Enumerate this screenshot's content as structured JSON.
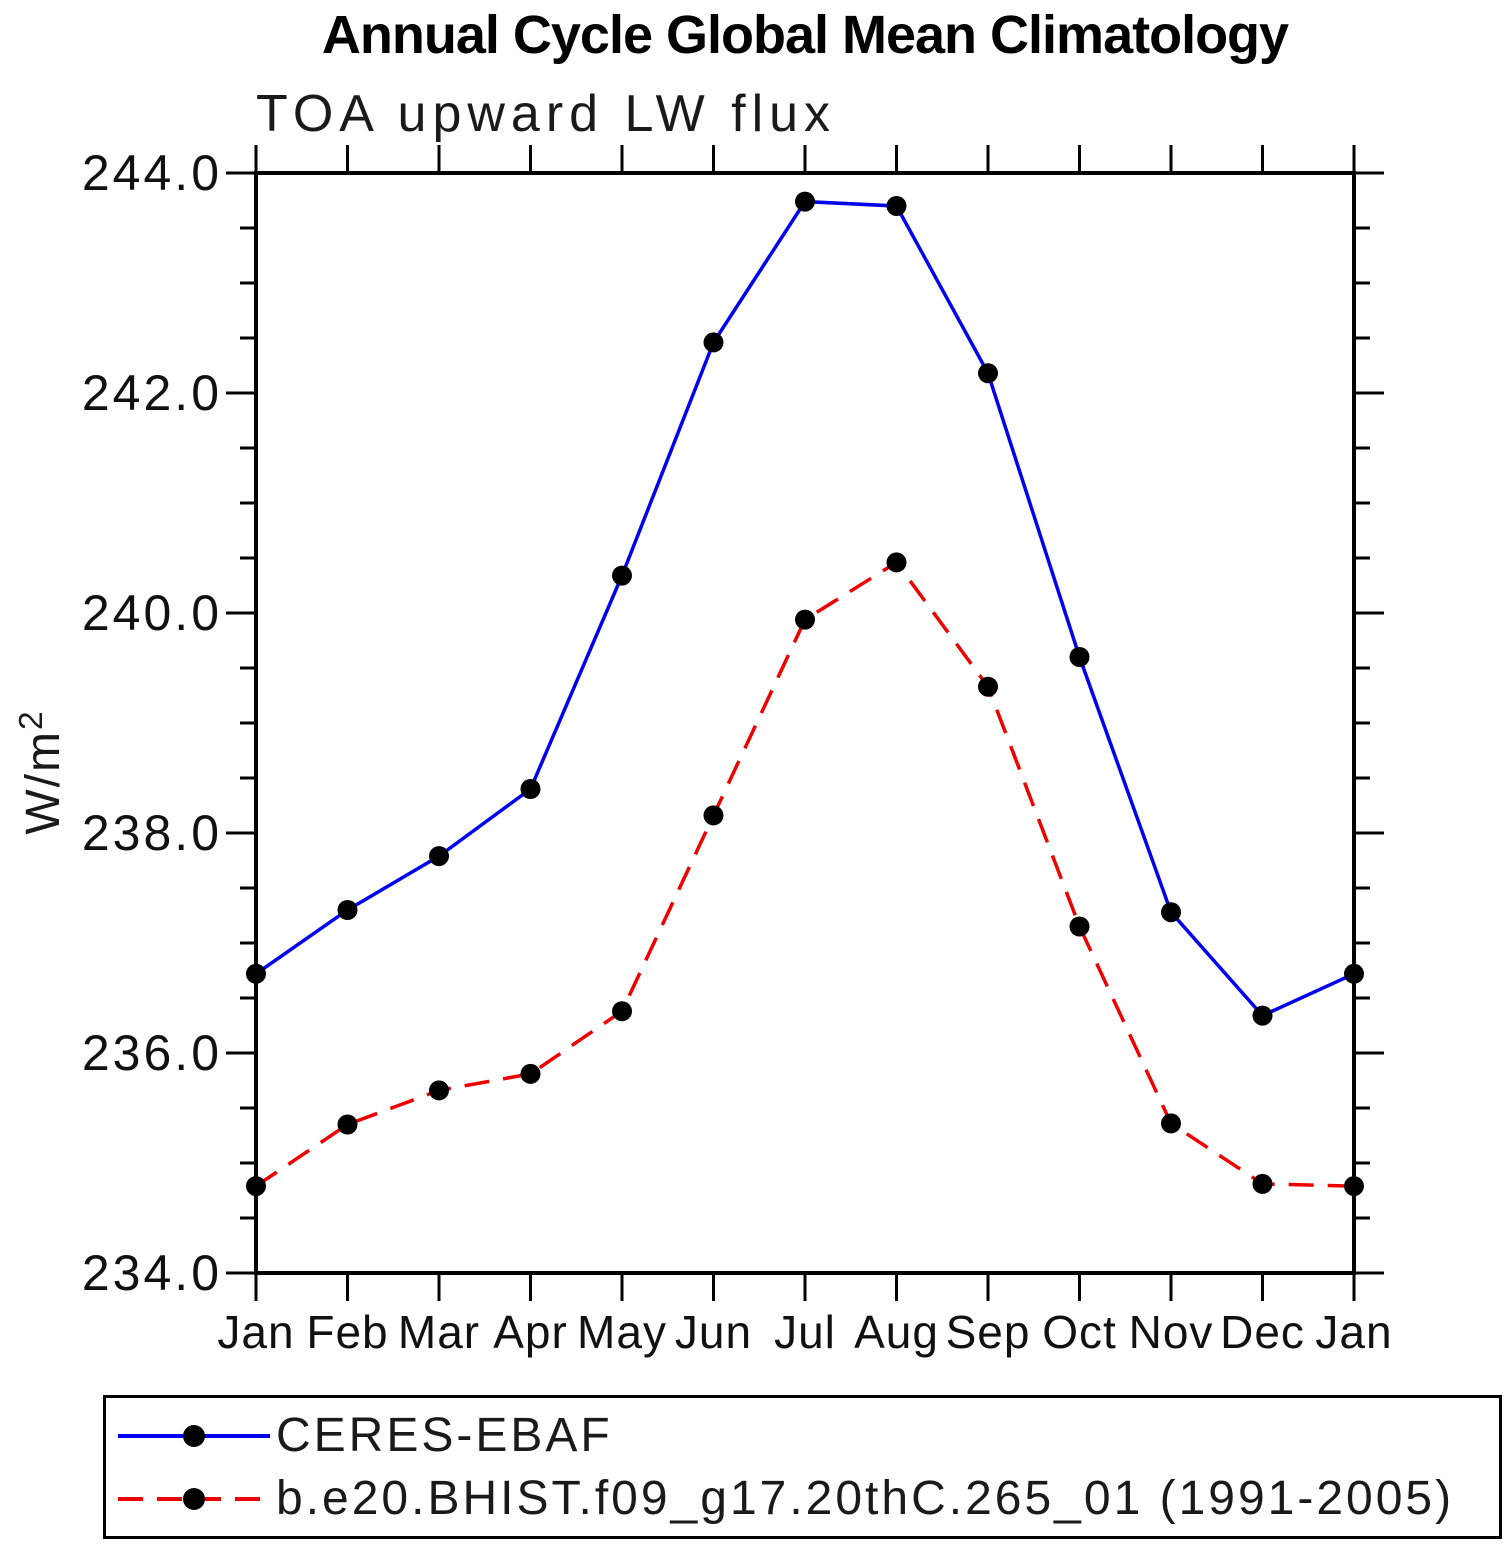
{
  "page": {
    "background": "#ffffff"
  },
  "chart_data": {
    "type": "line",
    "title": "Annual Cycle Global Mean Climatology",
    "subtitle": "TOA upward LW flux",
    "ylabel": "W/m²",
    "ylabel_base": "W/m",
    "ylabel_sup": "2",
    "categories": [
      "Jan",
      "Feb",
      "Mar",
      "Apr",
      "May",
      "Jun",
      "Jul",
      "Aug",
      "Sep",
      "Oct",
      "Nov",
      "Dec",
      "Jan"
    ],
    "ylim": [
      234.0,
      244.0
    ],
    "y_minor_step": 0.5,
    "y_major_step": 2.0,
    "y_ticks": [
      {
        "v": 244.0,
        "label": "244.0"
      },
      {
        "v": 242.0,
        "label": "242.0"
      },
      {
        "v": 240.0,
        "label": "240.0"
      },
      {
        "v": 238.0,
        "label": "238.0"
      },
      {
        "v": 236.0,
        "label": "236.0"
      },
      {
        "v": 234.0,
        "label": "234.0"
      }
    ],
    "grid": false,
    "legend_position": "bottom-left-box",
    "marker": "filled-circle",
    "marker_color": "#000000",
    "series": [
      {
        "name": "CERES-EBAF",
        "color": "#0000ee",
        "line_style": "solid",
        "values": [
          236.72,
          237.3,
          237.79,
          238.4,
          240.34,
          242.46,
          243.74,
          243.7,
          242.18,
          239.6,
          237.28,
          236.34,
          236.72
        ]
      },
      {
        "name": "b.e20.BHIST.f09_g17.20thC.265_01 (1991-2005)",
        "color": "#ee0000",
        "line_style": "dashed",
        "values": [
          234.79,
          235.35,
          235.66,
          235.81,
          236.38,
          238.16,
          239.94,
          240.46,
          239.33,
          237.15,
          235.36,
          234.81,
          234.79
        ]
      }
    ]
  }
}
